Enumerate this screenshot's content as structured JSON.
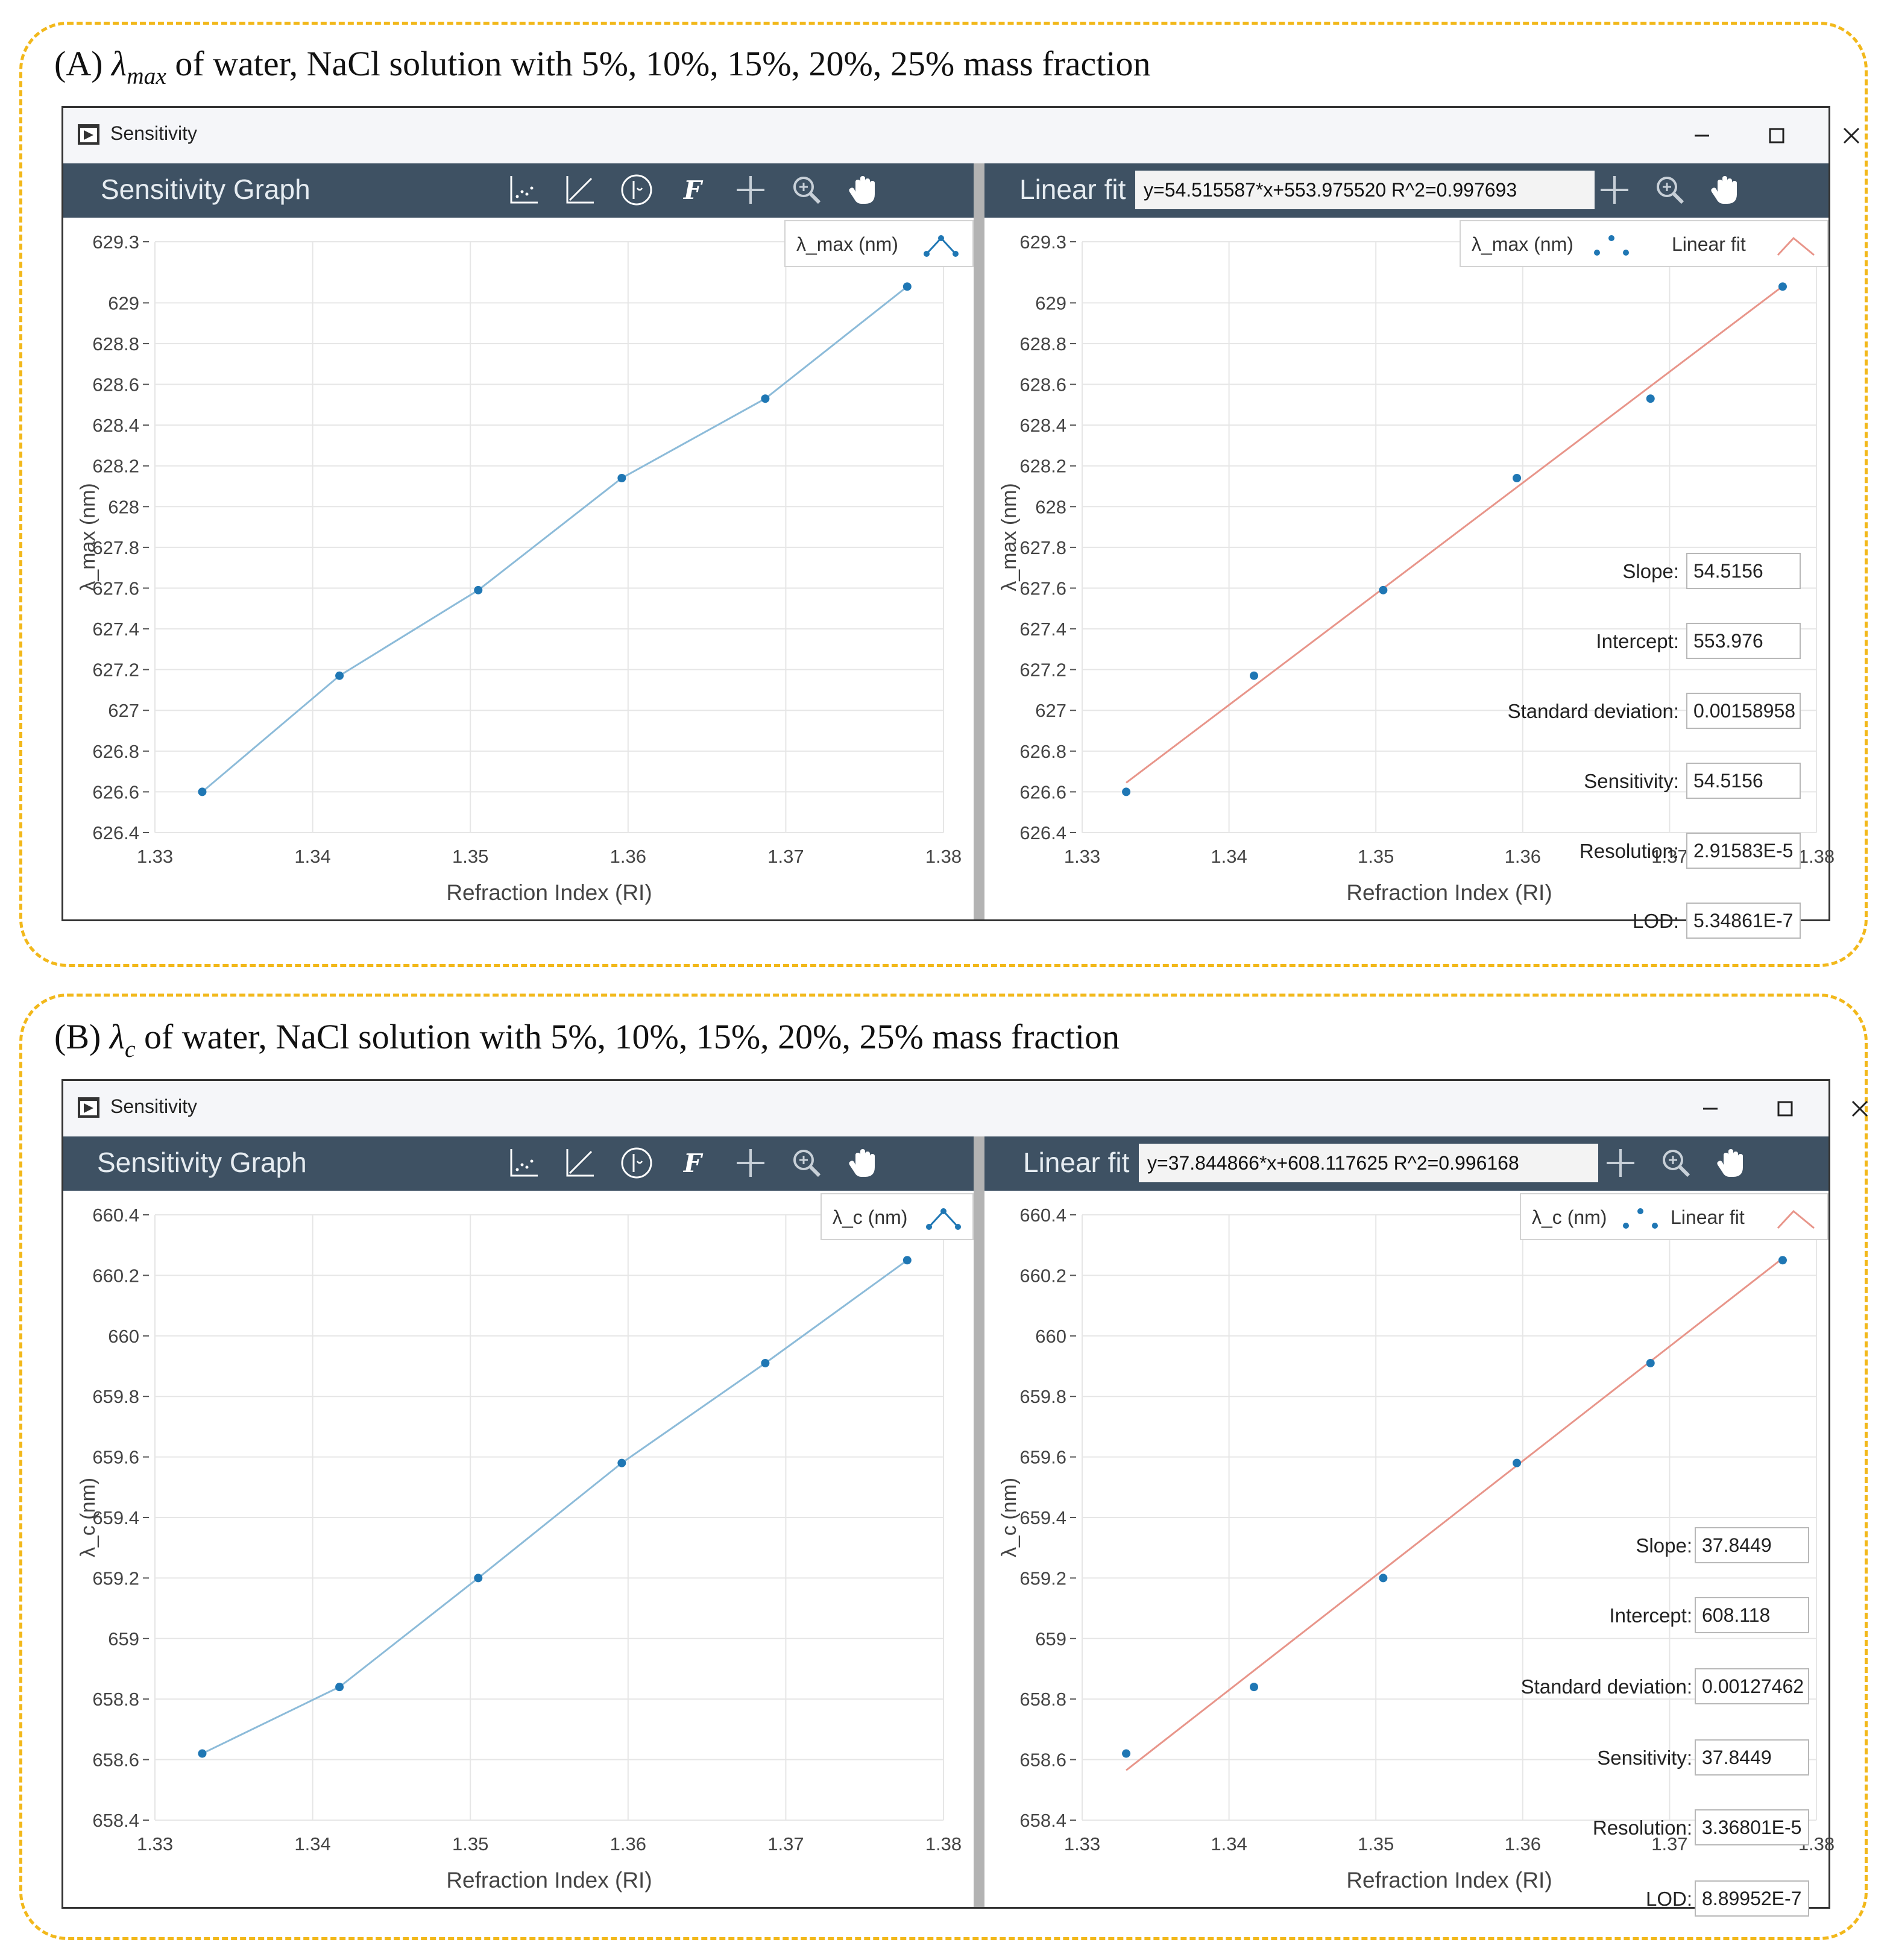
{
  "panels": [
    {
      "caption": {
        "prefix": "(A) ",
        "lambda": "λ",
        "sub": "max",
        "suffix": " of water, NaCl solution with 5%, 10%, 15%, 20%, 25% mass fraction"
      },
      "window": {
        "title": "Sensitivity",
        "left_title": "Sensitivity Graph",
        "right_title": "Linear fit",
        "equation": "y=54.515587*x+553.975520  R^2=0.997693",
        "legend_left": "λ_max (nm)",
        "legend_right_series": "λ_max (nm)",
        "legend_right_fit": "Linear fit",
        "stats": [
          {
            "label": "Slope:",
            "value": "54.5156"
          },
          {
            "label": "Intercept:",
            "value": "553.976"
          },
          {
            "label": "Standard deviation:",
            "value": "0.00158958"
          },
          {
            "label": "Sensitivity:",
            "value": "54.5156"
          },
          {
            "label": "Resolution:",
            "value": "2.91583E-5"
          },
          {
            "label": "LOD:",
            "value": "5.34861E-7"
          }
        ]
      },
      "chart_data": {
        "type": "line",
        "xlabel": "Refraction Index (RI)",
        "ylabel": "λ_max (nm)",
        "xlim": [
          1.33,
          1.38
        ],
        "ylim": [
          626.4,
          629.3
        ],
        "x_ticks": [
          "1.33",
          "1.34",
          "1.35",
          "1.36",
          "1.37",
          "1.38"
        ],
        "y_ticks": [
          "626.4",
          "626.6",
          "626.8",
          "627",
          "627.2",
          "627.4",
          "627.6",
          "627.8",
          "628",
          "628.2",
          "628.4",
          "628.6",
          "628.8",
          "629",
          "629.3"
        ],
        "x": [
          1.333,
          1.3417,
          1.3505,
          1.3596,
          1.3687,
          1.3777
        ],
        "values": [
          626.6,
          627.17,
          627.59,
          628.14,
          628.53,
          629.08
        ],
        "fit": {
          "slope": 54.515587,
          "intercept": 553.97552
        }
      }
    },
    {
      "caption": {
        "prefix": "(B) ",
        "lambda": "λ",
        "sub": "c",
        "suffix": " of water, NaCl solution with 5%, 10%, 15%, 20%, 25% mass fraction"
      },
      "window": {
        "title": "Sensitivity",
        "left_title": "Sensitivity Graph",
        "right_title": "Linear fit",
        "equation": "y=37.844866*x+608.117625  R^2=0.996168",
        "legend_left": "λ_c (nm)",
        "legend_right_series": "λ_c (nm)",
        "legend_right_fit": "Linear fit",
        "stats": [
          {
            "label": "Slope:",
            "value": "37.8449"
          },
          {
            "label": "Intercept:",
            "value": "608.118"
          },
          {
            "label": "Standard deviation:",
            "value": "0.00127462"
          },
          {
            "label": "Sensitivity:",
            "value": "37.8449"
          },
          {
            "label": "Resolution:",
            "value": "3.36801E-5"
          },
          {
            "label": "LOD:",
            "value": "8.89952E-7"
          }
        ]
      },
      "chart_data": {
        "type": "line",
        "xlabel": "Refraction Index (RI)",
        "ylabel": "λ_c (nm)",
        "xlim": [
          1.33,
          1.38
        ],
        "ylim": [
          658.4,
          660.4
        ],
        "x_ticks": [
          "1.33",
          "1.34",
          "1.35",
          "1.36",
          "1.37",
          "1.38"
        ],
        "y_ticks": [
          "658.4",
          "658.6",
          "658.8",
          "659",
          "659.2",
          "659.4",
          "659.6",
          "659.8",
          "660",
          "660.2",
          "660.4"
        ],
        "x": [
          1.333,
          1.3417,
          1.3505,
          1.3596,
          1.3687,
          1.3777
        ],
        "values": [
          658.62,
          658.84,
          659.2,
          659.58,
          659.91,
          660.25
        ],
        "fit": {
          "slope": 37.844866,
          "intercept": 608.117625
        }
      }
    }
  ],
  "colors": {
    "series": "#1f77b4",
    "line": "#8cbbd9",
    "fit": "#e8958a",
    "toolbar": "#3e5163",
    "frame": "#f2b81b"
  }
}
